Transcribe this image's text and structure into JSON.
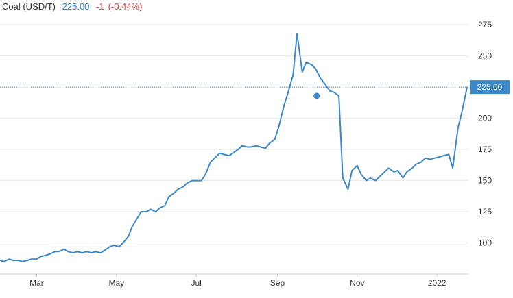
{
  "header": {
    "symbol": "Coal (USD/T)",
    "price": "225.00",
    "change": "-1",
    "change_pct": "(-0.44%)"
  },
  "colors": {
    "line": "#3b87c8",
    "grid": "#e6e6e6",
    "axis_text": "#333333",
    "last_price_tag": "#3b87c8",
    "price_text": "#2f7ed8",
    "change_text": "#e0393e"
  },
  "chart_data": {
    "type": "line",
    "title": "Coal (USD/T)",
    "xlabel": "",
    "ylabel": "",
    "x_tick_labels": [
      "Mar",
      "May",
      "Jul",
      "Sep",
      "Nov",
      "2022"
    ],
    "x_tick_dates": [
      "2021-03-01",
      "2021-05-01",
      "2021-07-01",
      "2021-09-01",
      "2021-11-01",
      "2022-01-01"
    ],
    "xlim": [
      "2021-02-01",
      "2022-01-25"
    ],
    "y_ticks": [
      100,
      125,
      150,
      175,
      200,
      225,
      250,
      275
    ],
    "ylim": [
      75,
      285
    ],
    "y_axis_side": "right",
    "grid": "horizontal",
    "last_value": 225.0,
    "last_value_label": "225.00",
    "marker": {
      "x": "2021-10-01",
      "y": 218
    },
    "series": [
      {
        "x": [
          "2021-02-01",
          "2021-02-04",
          "2021-02-08",
          "2021-02-11",
          "2021-02-15",
          "2021-02-18",
          "2021-02-22",
          "2021-02-25",
          "2021-03-01",
          "2021-03-04",
          "2021-03-08",
          "2021-03-11",
          "2021-03-15",
          "2021-03-18",
          "2021-03-22",
          "2021-03-25",
          "2021-03-29",
          "2021-04-01",
          "2021-04-05",
          "2021-04-08",
          "2021-04-12",
          "2021-04-15",
          "2021-04-19",
          "2021-04-22",
          "2021-04-26",
          "2021-04-29",
          "2021-05-03",
          "2021-05-06",
          "2021-05-10",
          "2021-05-13",
          "2021-05-17",
          "2021-05-20",
          "2021-05-24",
          "2021-05-27",
          "2021-05-31",
          "2021-06-03",
          "2021-06-07",
          "2021-06-10",
          "2021-06-14",
          "2021-06-17",
          "2021-06-21",
          "2021-06-24",
          "2021-06-28",
          "2021-07-01",
          "2021-07-05",
          "2021-07-08",
          "2021-07-12",
          "2021-07-15",
          "2021-07-19",
          "2021-07-22",
          "2021-07-26",
          "2021-07-29",
          "2021-08-02",
          "2021-08-05",
          "2021-08-09",
          "2021-08-12",
          "2021-08-16",
          "2021-08-19",
          "2021-08-23",
          "2021-08-26",
          "2021-08-30",
          "2021-09-02",
          "2021-09-06",
          "2021-09-09",
          "2021-09-13",
          "2021-09-16",
          "2021-09-20",
          "2021-09-23",
          "2021-09-27",
          "2021-09-30",
          "2021-10-04",
          "2021-10-07",
          "2021-10-11",
          "2021-10-14",
          "2021-10-18",
          "2021-10-21",
          "2021-10-25",
          "2021-10-28",
          "2021-11-01",
          "2021-11-04",
          "2021-11-08",
          "2021-11-11",
          "2021-11-15",
          "2021-11-18",
          "2021-11-22",
          "2021-11-25",
          "2021-11-29",
          "2021-12-02",
          "2021-12-06",
          "2021-12-09",
          "2021-12-13",
          "2021-12-16",
          "2021-12-20",
          "2021-12-23",
          "2021-12-27",
          "2021-12-30",
          "2022-01-03",
          "2022-01-06",
          "2022-01-10",
          "2022-01-13",
          "2022-01-17",
          "2022-01-20",
          "2022-01-24"
        ],
        "values": [
          86,
          85,
          87,
          86,
          86,
          85,
          86,
          87,
          87,
          89,
          90,
          91,
          93,
          93,
          95,
          93,
          92,
          93,
          92,
          93,
          92,
          93,
          92,
          94,
          97,
          98,
          97,
          100,
          105,
          113,
          120,
          125,
          125,
          127,
          125,
          128,
          130,
          137,
          140,
          143,
          145,
          148,
          150,
          150,
          150,
          155,
          165,
          168,
          172,
          171,
          170,
          172,
          175,
          178,
          177,
          177,
          178,
          177,
          176,
          180,
          183,
          193,
          210,
          220,
          235,
          268,
          237,
          245,
          243,
          240,
          232,
          228,
          222,
          221,
          218,
          152,
          143,
          158,
          162,
          155,
          150,
          152,
          150,
          153,
          157,
          160,
          157,
          158,
          152,
          157,
          160,
          163,
          165,
          168,
          167,
          168,
          169,
          170,
          171,
          160,
          192,
          205,
          225
        ]
      }
    ]
  }
}
